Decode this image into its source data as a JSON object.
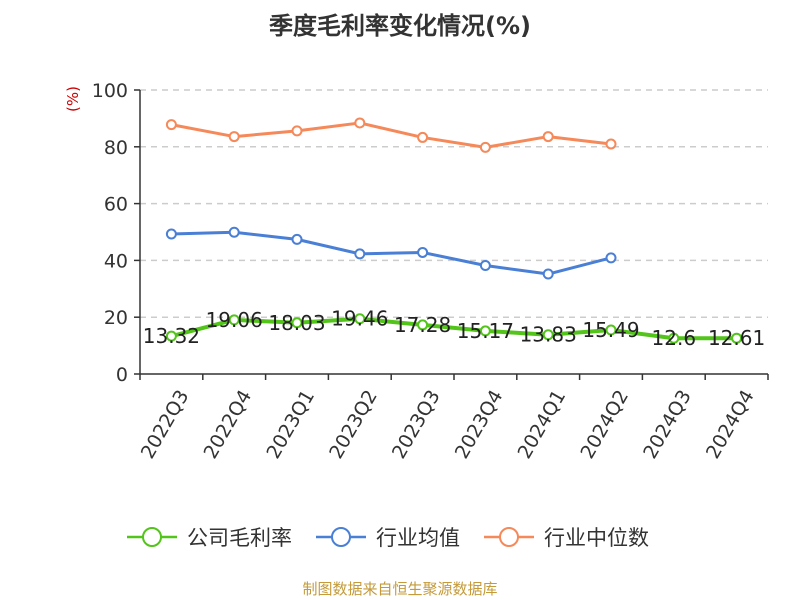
{
  "chart_data": {
    "type": "line",
    "title": "季度毛利率变化情况(%)",
    "ylabel": "(%)",
    "ylim": [
      0,
      100
    ],
    "yticks": [
      0,
      20,
      40,
      60,
      80,
      100
    ],
    "grid": true,
    "legend_position": "bottom",
    "categories": [
      "2022Q3",
      "2022Q4",
      "2023Q1",
      "2023Q2",
      "2023Q3",
      "2023Q4",
      "2024Q1",
      "2024Q2",
      "2024Q3",
      "2024Q4"
    ],
    "series": [
      {
        "name": "公司毛利率",
        "color": "#52c41a",
        "values": [
          13.32,
          19.06,
          18.03,
          19.46,
          17.28,
          15.17,
          13.83,
          15.49,
          12.6,
          12.61
        ],
        "labels": [
          "13.32",
          "19.06",
          "18.03",
          "19.46",
          "17.28",
          "15.17",
          "13.83",
          "15.49",
          "12.6",
          "12.61"
        ]
      },
      {
        "name": "行业均值",
        "color": "#4a7fd6",
        "values": [
          49.3,
          49.9,
          47.4,
          42.3,
          42.8,
          38.2,
          35.2,
          40.9,
          null,
          null
        ]
      },
      {
        "name": "行业中位数",
        "color": "#f5895a",
        "values": [
          87.8,
          83.6,
          85.6,
          88.4,
          83.3,
          79.8,
          83.6,
          81.0,
          null,
          null
        ]
      }
    ]
  },
  "source": "制图数据来自恒生聚源数据库"
}
